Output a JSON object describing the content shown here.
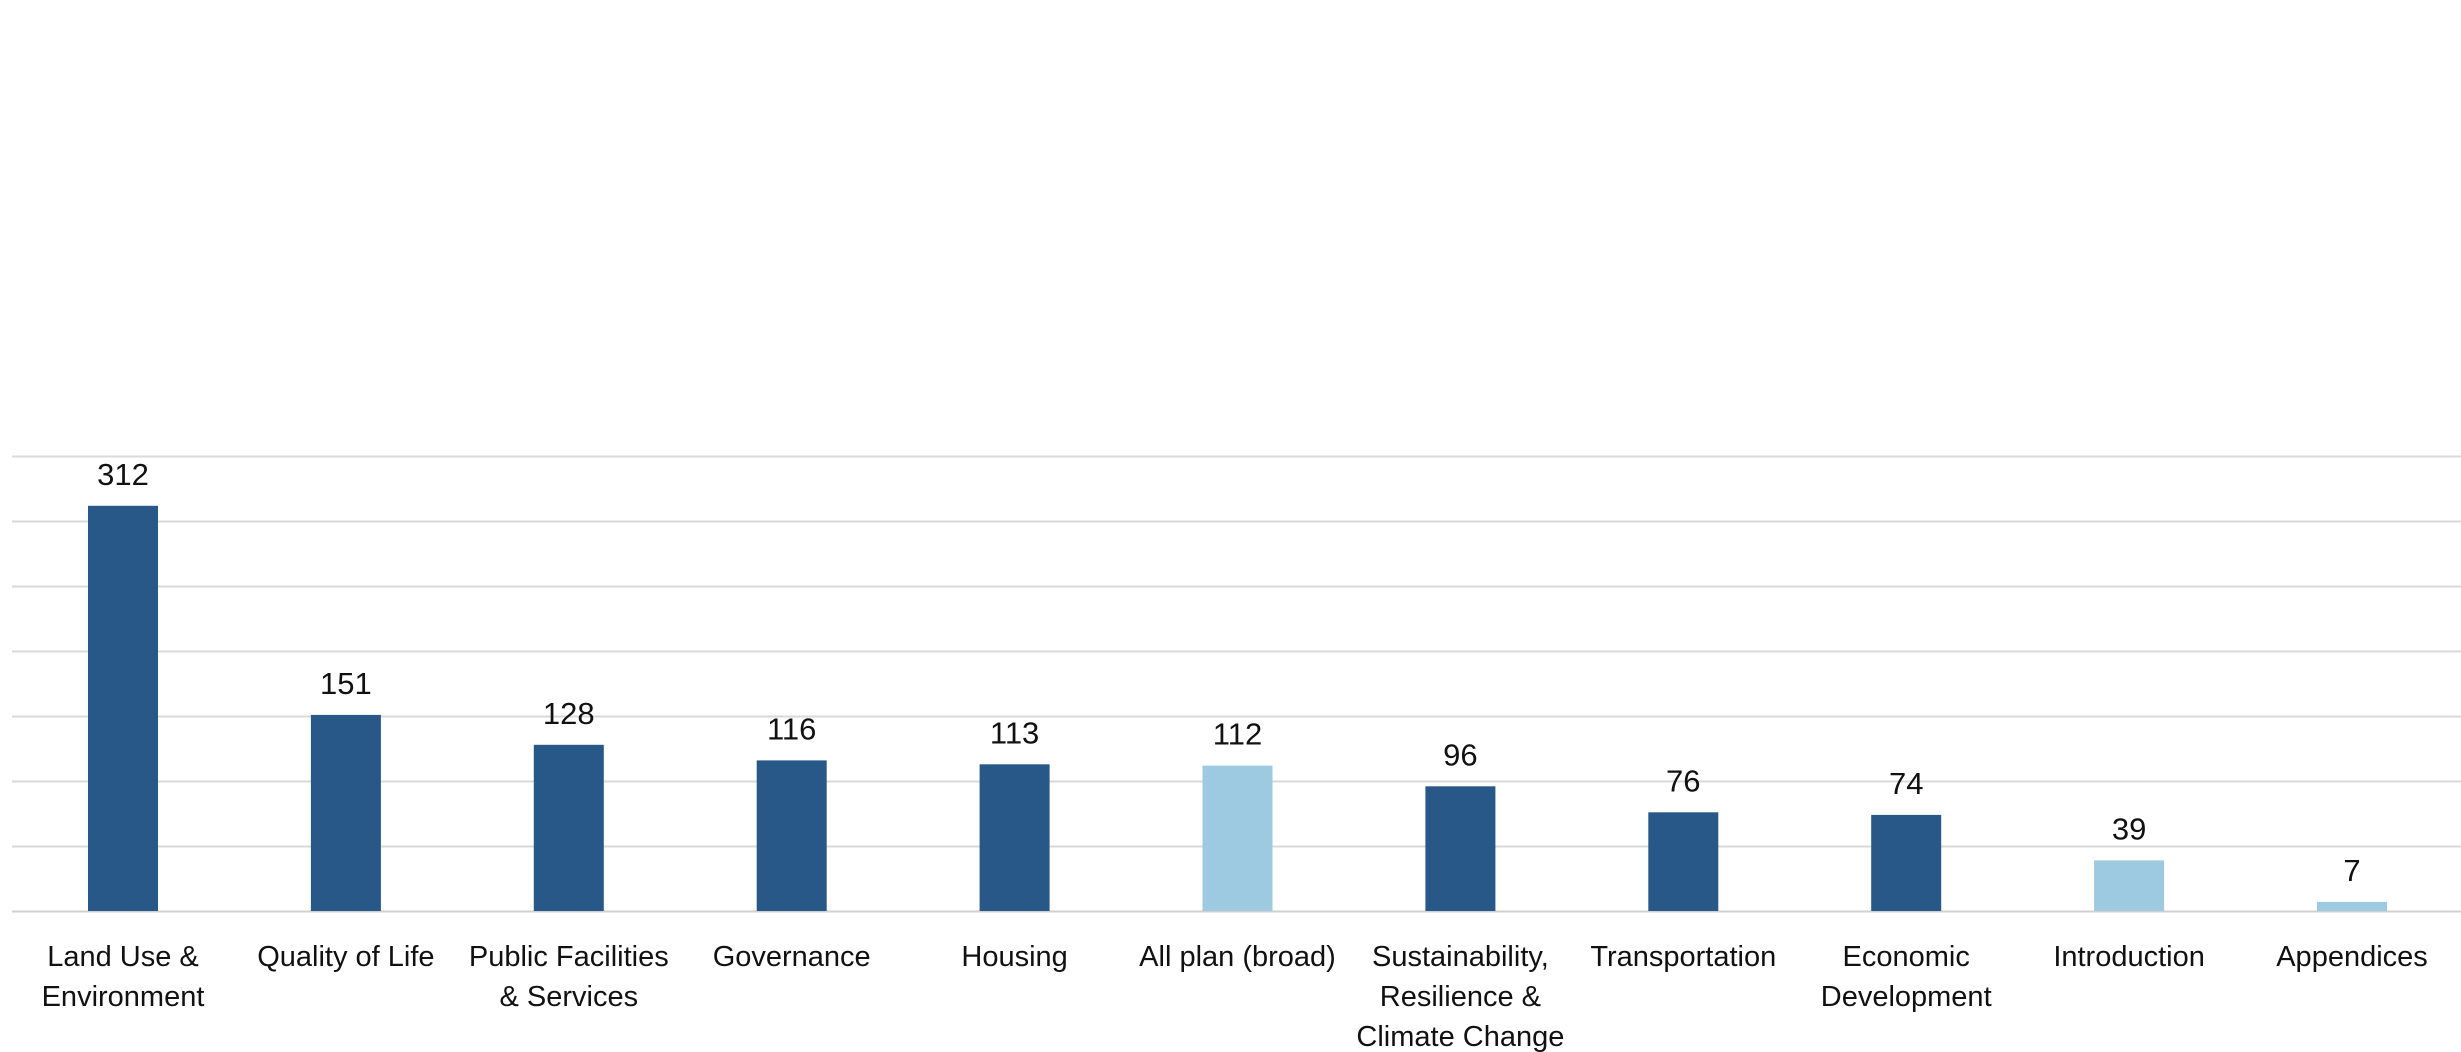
{
  "chart_data": {
    "type": "bar",
    "title": "",
    "xlabel": "",
    "ylabel": "",
    "ylim": [
      0,
      350
    ],
    "y_gridlines": [
      0,
      50,
      100,
      150,
      200,
      250,
      300,
      350
    ],
    "grid": true,
    "legend": "none",
    "categories": [
      [
        "Land Use &",
        "Environment"
      ],
      [
        "Quality of Life"
      ],
      [
        "Public Facilities",
        "& Services"
      ],
      [
        "Governance"
      ],
      [
        "Housing"
      ],
      [
        "All plan (broad)"
      ],
      [
        "Sustainability,",
        "Resilience &",
        "Climate Change"
      ],
      [
        "Transportation"
      ],
      [
        "Economic",
        "Development"
      ],
      [
        "Introduction"
      ],
      [
        "Appendices"
      ]
    ],
    "values": [
      312,
      151,
      128,
      116,
      113,
      112,
      96,
      76,
      74,
      39,
      7
    ],
    "bar_colors": [
      "#275887",
      "#275887",
      "#275887",
      "#275887",
      "#275887",
      "#9ecae1",
      "#275887",
      "#275887",
      "#275887",
      "#9ecae1",
      "#9ecae1"
    ],
    "colors": {
      "primary": "#275887",
      "secondary": "#9ecae1",
      "grid": "#d9d9d9",
      "text": "#111111"
    }
  }
}
